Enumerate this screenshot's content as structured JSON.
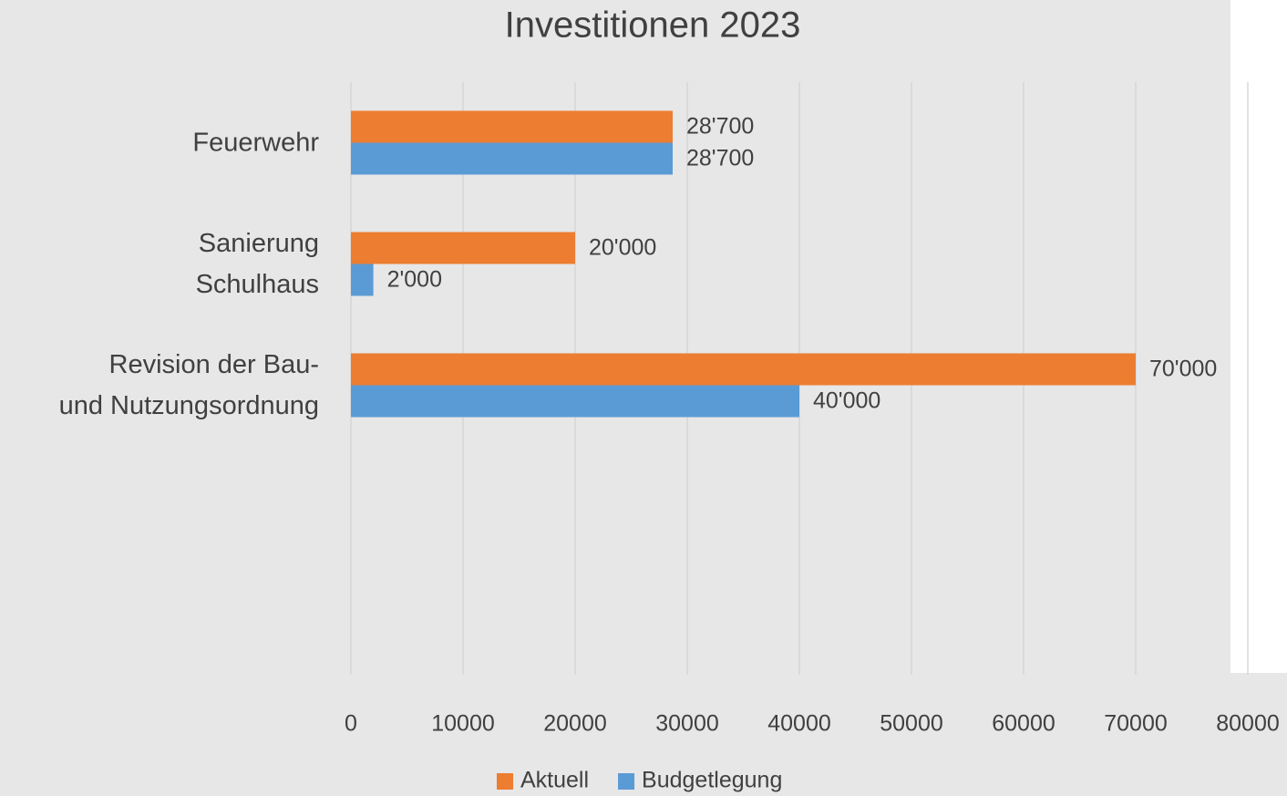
{
  "chart_data": {
    "type": "hbar",
    "title": "Investitionen 2023",
    "categories": [
      "Feuerwehr",
      "Sanierung\nSchulhaus",
      "Revision der Bau-\nund Nutzungsordnung"
    ],
    "series": [
      {
        "name": "Aktuell",
        "color": "#ed7d31",
        "values": [
          28700,
          20000,
          70000
        ],
        "value_labels": [
          "28'700",
          "20'000",
          "70'000"
        ]
      },
      {
        "name": "Budgetlegung",
        "color": "#5b9bd5",
        "values": [
          28700,
          2000,
          40000
        ],
        "value_labels": [
          "28'700",
          "2'000",
          "40'000"
        ]
      }
    ],
    "xlim": [
      0,
      80000
    ],
    "xticks": [
      0,
      10000,
      20000,
      30000,
      40000,
      50000,
      60000,
      70000,
      80000
    ],
    "grid": true,
    "legend": "bottom"
  }
}
